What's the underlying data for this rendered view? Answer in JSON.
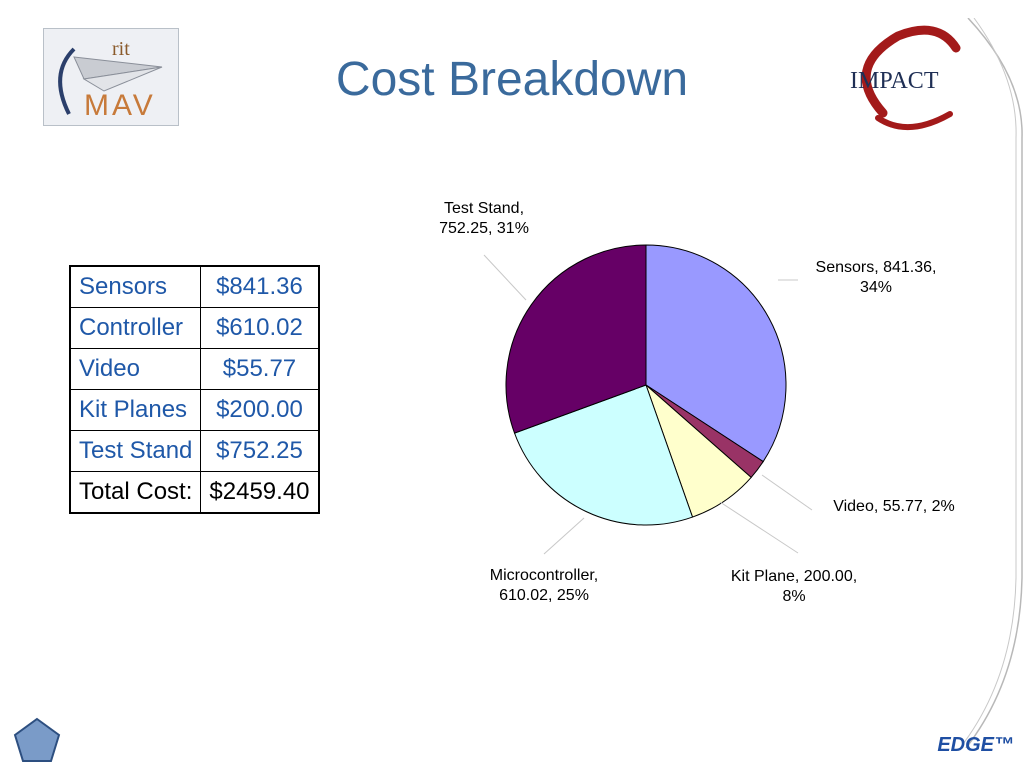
{
  "slide": {
    "title": "Cost Breakdown",
    "footer": "EDGE™",
    "logo_left": {
      "top_text": "rit",
      "main_text": "MAV"
    },
    "logo_right": {
      "text": "IMPACT"
    }
  },
  "cost_table": {
    "rows": [
      {
        "item": "Sensors",
        "amount": "$841.36"
      },
      {
        "item": "Controller",
        "amount": "$610.02"
      },
      {
        "item": "Video",
        "amount": "$55.77"
      },
      {
        "item": "Kit Planes",
        "amount": "$200.00"
      },
      {
        "item": "Test Stand",
        "amount": "$752.25"
      }
    ],
    "total": {
      "item": "Total Cost:",
      "amount": "$2459.40"
    }
  },
  "colors": {
    "title": "#3a6a9c",
    "table_text": "#1f58a8",
    "slices": [
      "#9999ff",
      "#993366",
      "#ffffcc",
      "#ccffff",
      "#660066"
    ]
  },
  "chart_data": {
    "type": "pie",
    "slices": [
      {
        "name": "Sensors",
        "value": 841.36,
        "label": [
          "Sensors, 841.36,",
          "34%"
        ]
      },
      {
        "name": "Video",
        "value": 55.77,
        "label": [
          "Video, 55.77, 2%"
        ]
      },
      {
        "name": "Kit Plane",
        "value": 200.0,
        "label": [
          "Kit Plane, 200.00,",
          "8%"
        ]
      },
      {
        "name": "Microcontroller",
        "value": 610.02,
        "label": [
          "Microcontroller,",
          "610.02, 25%"
        ]
      },
      {
        "name": "Test Stand",
        "value": 752.25,
        "label": [
          "Test Stand,",
          "752.25, 31%"
        ]
      }
    ]
  }
}
